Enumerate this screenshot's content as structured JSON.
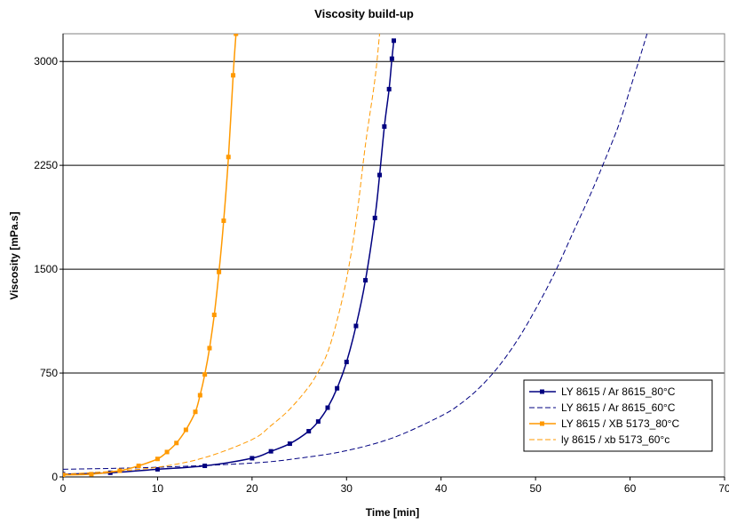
{
  "chart_data": {
    "type": "line",
    "title": "Viscosity build-up",
    "xlabel": "Time [min]",
    "ylabel": "Viscosity [mPa.s]",
    "xlim": [
      0,
      70
    ],
    "ylim": [
      0,
      3200
    ],
    "xticks": [
      0,
      10,
      20,
      30,
      40,
      50,
      60,
      70
    ],
    "yticks": [
      0,
      750,
      1500,
      2250,
      3000
    ],
    "grid": "horizontal major gridlines",
    "legend_position": "bottom-right",
    "series": [
      {
        "name": "LY 8615 / Ar 8615_80°C",
        "color": "#000080",
        "style": "solid-square-markers",
        "x": [
          0,
          5,
          10,
          15,
          20,
          22,
          24,
          26,
          27,
          28,
          29,
          30,
          31,
          32,
          33,
          33.5,
          34,
          34.5,
          34.8,
          35
        ],
        "y": [
          20,
          30,
          55,
          80,
          135,
          185,
          240,
          330,
          400,
          500,
          640,
          830,
          1090,
          1420,
          1870,
          2180,
          2530,
          2800,
          3020,
          3150
        ]
      },
      {
        "name": "LY 8615 / Ar 8615_60°C",
        "color": "#000080",
        "style": "dashed",
        "x": [
          0,
          10,
          20,
          25,
          30,
          35,
          40,
          42,
          44,
          46,
          48,
          50,
          52,
          54,
          56,
          58,
          59,
          60,
          61,
          61.8
        ],
        "y": [
          55,
          70,
          100,
          135,
          190,
          285,
          440,
          525,
          640,
          790,
          980,
          1210,
          1470,
          1770,
          2070,
          2400,
          2580,
          2800,
          3020,
          3200
        ]
      },
      {
        "name": "LY 8615 / XB 5173_80°C",
        "color": "#FF9900",
        "style": "solid-square-markers",
        "x": [
          0,
          3,
          6,
          8,
          10,
          11,
          12,
          13,
          14,
          14.5,
          15,
          15.5,
          16,
          16.5,
          17,
          17.5,
          18,
          18.3
        ],
        "y": [
          15,
          20,
          45,
          80,
          130,
          180,
          245,
          340,
          470,
          590,
          740,
          930,
          1170,
          1480,
          1850,
          2310,
          2900,
          3200
        ]
      },
      {
        "name": "ly 8615 / xb 5173_60°c",
        "color": "#FF9900",
        "style": "dashed",
        "x": [
          0,
          5,
          10,
          15,
          20,
          22,
          24,
          26,
          27,
          28,
          29,
          30,
          31,
          32,
          33,
          33.5
        ],
        "y": [
          20,
          40,
          70,
          140,
          270,
          370,
          490,
          650,
          760,
          900,
          1130,
          1430,
          1840,
          2400,
          2870,
          3200
        ]
      }
    ]
  }
}
